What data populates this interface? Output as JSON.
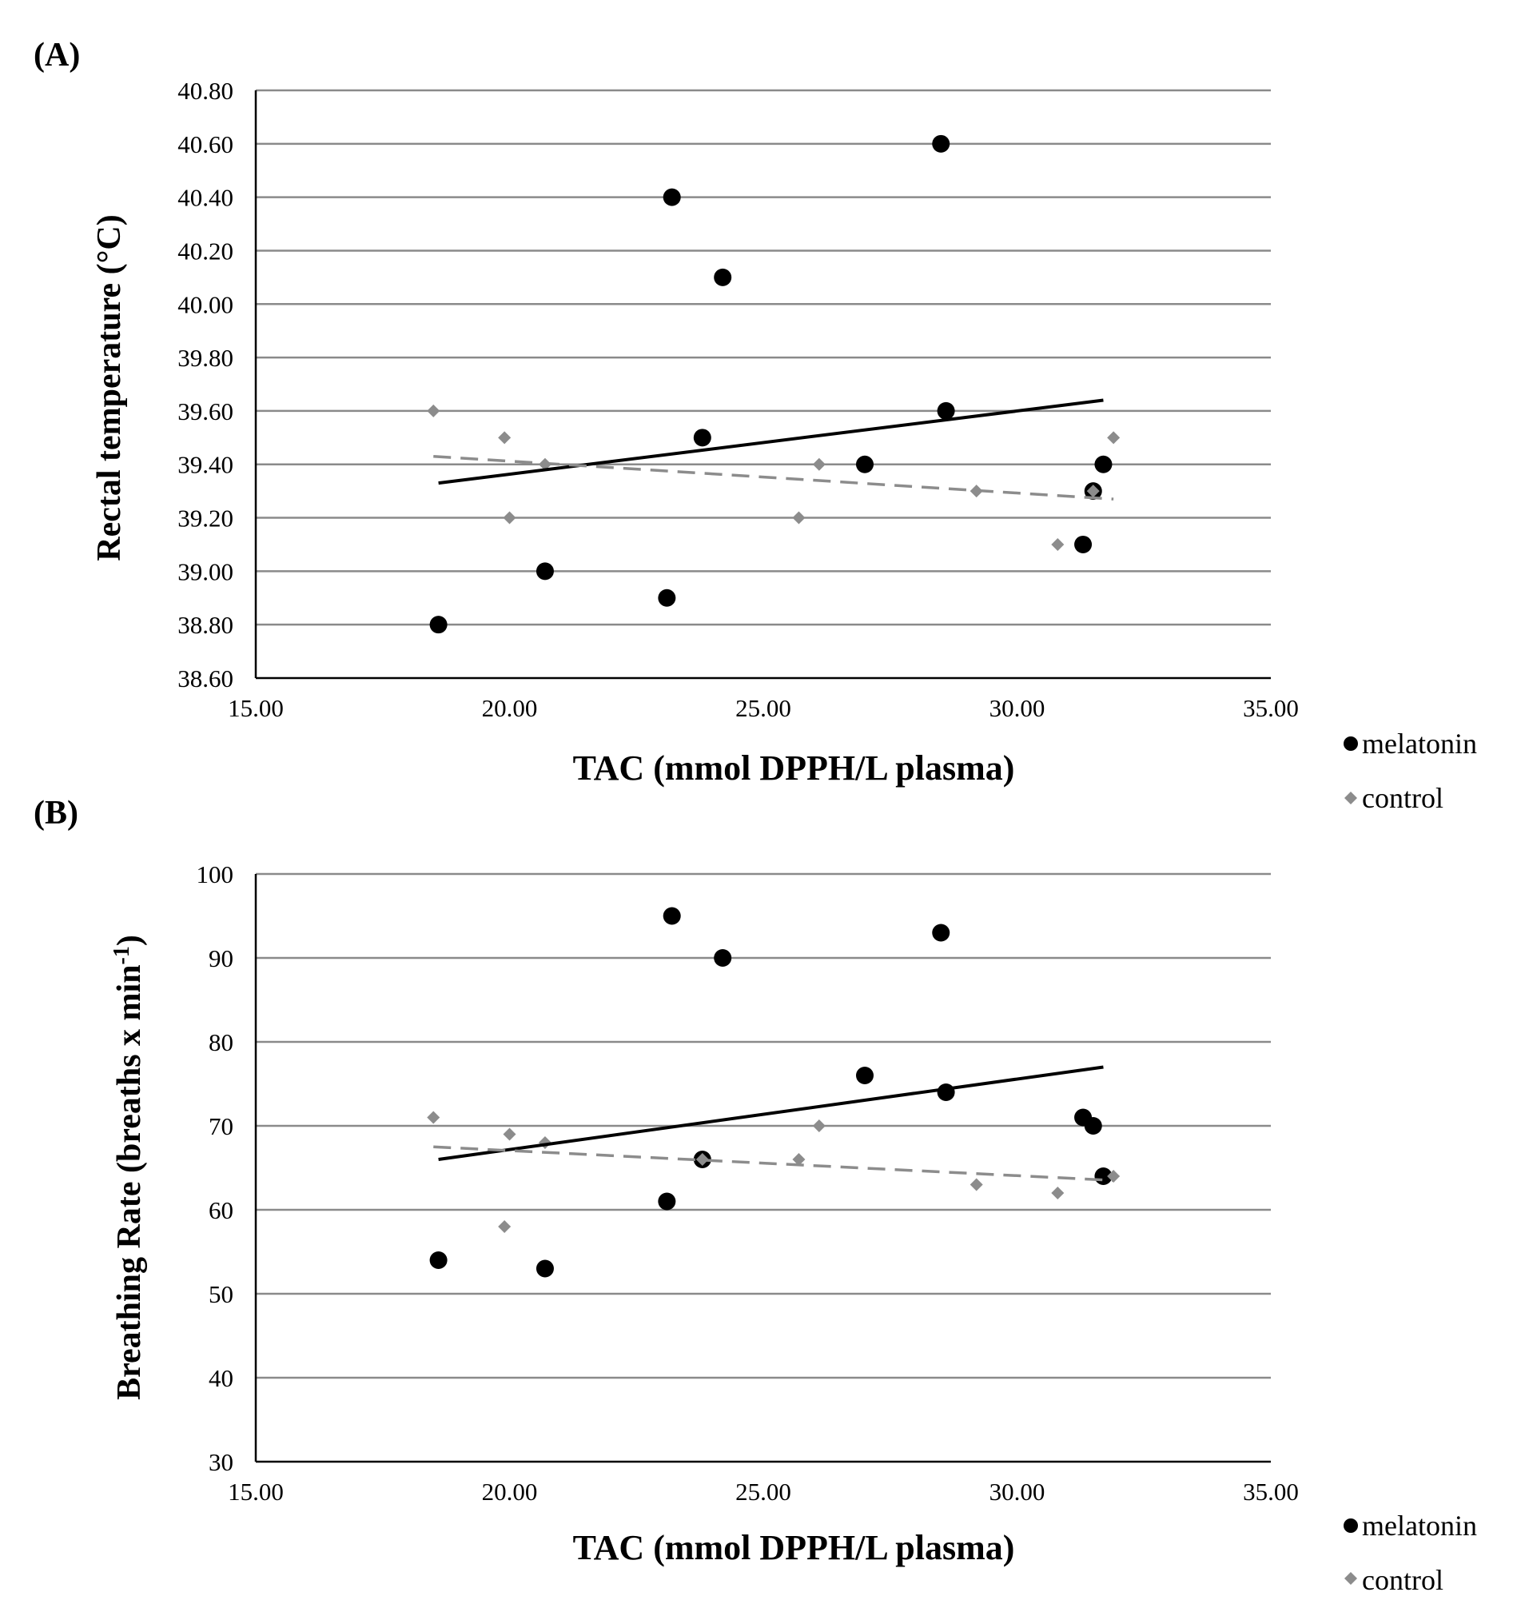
{
  "colors": {
    "melatonin": "#000000",
    "control": "#8c8c8c",
    "grid": "#8a8a8a",
    "axis": "#000000"
  },
  "chart_data": [
    {
      "type": "scatter",
      "panel_label": "(A)",
      "xlabel": "TAC  (mmol DPPH/L  plasma)",
      "ylabel": "Rectal temperature (°C)",
      "xlim": [
        15,
        35
      ],
      "ylim": [
        38.6,
        40.8
      ],
      "x_ticks": [
        15,
        20,
        25,
        30,
        35
      ],
      "x_tick_labels": [
        "15.00",
        "20.00",
        "25.00",
        "30.00",
        "35.00"
      ],
      "y_ticks": [
        38.6,
        38.8,
        39.0,
        39.2,
        39.4,
        39.6,
        39.8,
        40.0,
        40.2,
        40.4,
        40.6,
        40.8
      ],
      "y_tick_labels": [
        "38.60",
        "38.80",
        "39.00",
        "39.20",
        "39.40",
        "39.60",
        "39.80",
        "40.00",
        "40.20",
        "40.40",
        "40.60",
        "40.80"
      ],
      "grid": true,
      "legend": [
        "melatonin",
        "control"
      ],
      "legend_position": "bottom-right",
      "series": [
        {
          "name": "melatonin",
          "marker": "circle",
          "points": [
            [
              18.6,
              38.8
            ],
            [
              20.7,
              39.0
            ],
            [
              23.1,
              38.9
            ],
            [
              23.2,
              40.4
            ],
            [
              23.8,
              39.5
            ],
            [
              24.2,
              40.1
            ],
            [
              27.0,
              39.4
            ],
            [
              28.5,
              40.6
            ],
            [
              28.6,
              39.6
            ],
            [
              31.3,
              39.1
            ],
            [
              31.5,
              39.3
            ],
            [
              31.7,
              39.4
            ]
          ],
          "trendline": {
            "style": "solid",
            "x": [
              18.6,
              31.7
            ],
            "y": [
              39.33,
              39.64
            ]
          }
        },
        {
          "name": "control",
          "marker": "diamond",
          "points": [
            [
              18.5,
              39.6
            ],
            [
              19.9,
              39.5
            ],
            [
              20.0,
              39.2
            ],
            [
              20.7,
              39.4
            ],
            [
              25.7,
              39.2
            ],
            [
              26.1,
              39.4
            ],
            [
              29.2,
              39.3
            ],
            [
              30.8,
              39.1
            ],
            [
              31.5,
              39.3
            ],
            [
              31.9,
              39.5
            ]
          ],
          "trendline": {
            "style": "dashed",
            "x": [
              18.5,
              31.9
            ],
            "y": [
              39.43,
              39.27
            ]
          }
        }
      ]
    },
    {
      "type": "scatter",
      "panel_label": "(B)",
      "xlabel": "TAC  (mmol DPPH/L  plasma)",
      "ylabel": "Breathing Rate (breaths x min",
      "ylabel_superscript": "-1",
      "ylabel_close": ")",
      "xlim": [
        15,
        35
      ],
      "ylim": [
        30,
        100
      ],
      "x_ticks": [
        15,
        20,
        25,
        30,
        35
      ],
      "x_tick_labels": [
        "15.00",
        "20.00",
        "25.00",
        "30.00",
        "35.00"
      ],
      "y_ticks": [
        30,
        40,
        50,
        60,
        70,
        80,
        90,
        100
      ],
      "y_tick_labels": [
        "30",
        "40",
        "50",
        "60",
        "70",
        "80",
        "90",
        "100"
      ],
      "grid": true,
      "legend": [
        "melatonin",
        "control"
      ],
      "legend_position": "bottom-right",
      "series": [
        {
          "name": "melatonin",
          "marker": "circle",
          "points": [
            [
              18.6,
              54
            ],
            [
              20.7,
              53
            ],
            [
              23.1,
              61
            ],
            [
              23.2,
              95
            ],
            [
              23.8,
              66
            ],
            [
              24.2,
              90
            ],
            [
              27.0,
              76
            ],
            [
              28.5,
              93
            ],
            [
              28.6,
              74
            ],
            [
              31.3,
              71
            ],
            [
              31.5,
              70
            ],
            [
              31.7,
              64
            ]
          ],
          "trendline": {
            "style": "solid",
            "x": [
              18.6,
              31.7
            ],
            "y": [
              66,
              77
            ]
          }
        },
        {
          "name": "control",
          "marker": "diamond",
          "points": [
            [
              18.5,
              71
            ],
            [
              19.9,
              58
            ],
            [
              20.0,
              69
            ],
            [
              20.7,
              68
            ],
            [
              23.8,
              66
            ],
            [
              25.7,
              66
            ],
            [
              26.1,
              70
            ],
            [
              29.2,
              63
            ],
            [
              30.8,
              62
            ],
            [
              31.9,
              64
            ]
          ],
          "trendline": {
            "style": "dashed",
            "x": [
              18.5,
              31.9
            ],
            "y": [
              67.5,
              63.5
            ]
          }
        }
      ]
    }
  ]
}
